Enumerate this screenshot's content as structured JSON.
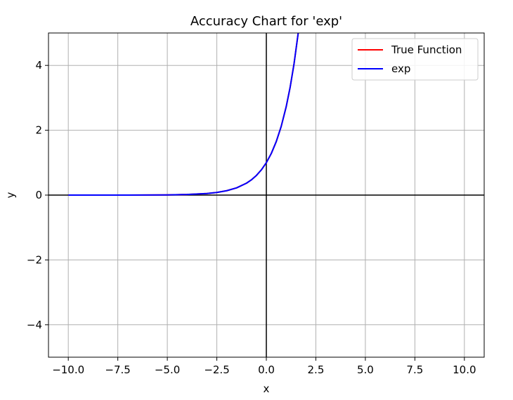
{
  "chart_data": {
    "type": "line",
    "title": "Accuracy Chart for 'exp'",
    "xlabel": "x",
    "ylabel": "y",
    "xlim": [
      -11,
      11
    ],
    "ylim": [
      -5,
      5
    ],
    "grid": true,
    "legend_position": "top-right",
    "x_ticks": [
      -10.0,
      -7.5,
      -5.0,
      -2.5,
      0.0,
      2.5,
      5.0,
      7.5,
      10.0
    ],
    "x_tick_labels": [
      "−10.0",
      "−7.5",
      "−5.0",
      "−2.5",
      "0.0",
      "2.5",
      "5.0",
      "7.5",
      "10.0"
    ],
    "y_ticks": [
      -4,
      -2,
      0,
      2,
      4
    ],
    "y_tick_labels": [
      "−4",
      "−2",
      "0",
      "2",
      "4"
    ],
    "series": [
      {
        "name": "True Function",
        "color": "#ff0000",
        "x": [
          -10,
          -9,
          -8,
          -7,
          -6,
          -5,
          -4,
          -3,
          -2.5,
          -2,
          -1.5,
          -1,
          -0.75,
          -0.5,
          -0.25,
          0,
          0.25,
          0.5,
          0.75,
          1,
          1.2,
          1.4,
          1.61
        ],
        "y": [
          4.54e-05,
          0.000123,
          0.000335,
          0.000912,
          0.00248,
          0.00674,
          0.0183,
          0.0498,
          0.0821,
          0.135,
          0.223,
          0.368,
          0.472,
          0.607,
          0.779,
          1.0,
          1.284,
          1.649,
          2.117,
          2.718,
          3.32,
          4.055,
          5.0
        ]
      },
      {
        "name": "exp",
        "color": "#0000ff",
        "x": [
          -10,
          -9,
          -8,
          -7,
          -6,
          -5,
          -4,
          -3,
          -2.5,
          -2,
          -1.5,
          -1,
          -0.75,
          -0.5,
          -0.25,
          0,
          0.25,
          0.5,
          0.75,
          1,
          1.2,
          1.4,
          1.61
        ],
        "y": [
          4.54e-05,
          0.000123,
          0.000335,
          0.000912,
          0.00248,
          0.00674,
          0.0183,
          0.0498,
          0.0821,
          0.135,
          0.223,
          0.368,
          0.472,
          0.607,
          0.779,
          1.0,
          1.284,
          1.649,
          2.117,
          2.718,
          3.32,
          4.055,
          5.0
        ]
      }
    ]
  }
}
